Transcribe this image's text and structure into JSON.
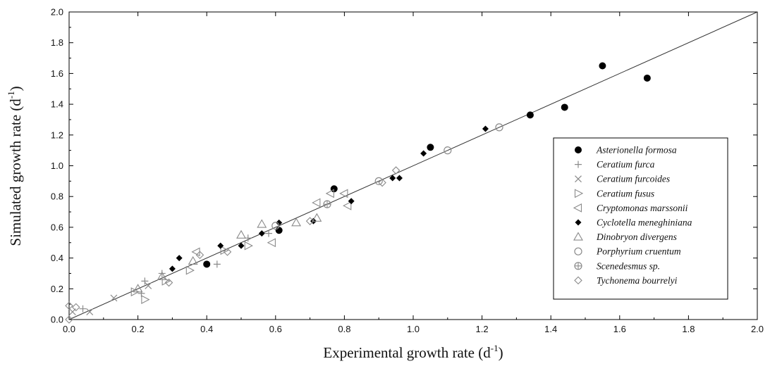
{
  "chart_data": {
    "type": "scatter",
    "xlabel": "Experimental growth rate (d",
    "xlabel_sup": "-1",
    "xlabel_end": ")",
    "ylabel": "Simulated growth rate (d",
    "ylabel_sup": "-1",
    "ylabel_end": ")",
    "xlim": [
      0.0,
      2.0
    ],
    "ylim": [
      0.0,
      2.0
    ],
    "xticks": [
      "0.0",
      "0.2",
      "0.4",
      "0.6",
      "0.8",
      "1.0",
      "1.2",
      "1.4",
      "1.6",
      "1.8",
      "2.0"
    ],
    "yticks": [
      "0.0",
      "0.2",
      "0.4",
      "0.6",
      "0.8",
      "1.0",
      "1.2",
      "1.4",
      "1.6",
      "1.8",
      "2.0"
    ],
    "grid": false,
    "legend_position": "bottom-right",
    "reference_line": {
      "type": "1:1",
      "from": [
        0,
        0
      ],
      "to": [
        2,
        2
      ]
    },
    "series": [
      {
        "name": "Asterionella formosa",
        "marker": "filled-circle",
        "points": [
          [
            0.4,
            0.36
          ],
          [
            0.61,
            0.58
          ],
          [
            0.77,
            0.85
          ],
          [
            1.05,
            1.12
          ],
          [
            1.34,
            1.33
          ],
          [
            1.44,
            1.38
          ],
          [
            1.55,
            1.65
          ],
          [
            1.68,
            1.57
          ]
        ]
      },
      {
        "name": "Ceratium furca",
        "marker": "plus",
        "points": [
          [
            0.04,
            0.07
          ],
          [
            0.21,
            0.17
          ],
          [
            0.22,
            0.25
          ],
          [
            0.27,
            0.3
          ],
          [
            0.43,
            0.36
          ],
          [
            0.52,
            0.53
          ],
          [
            0.58,
            0.56
          ]
        ]
      },
      {
        "name": "Ceratium furcoides",
        "marker": "cross",
        "points": [
          [
            0.01,
            0.05
          ],
          [
            0.06,
            0.05
          ],
          [
            0.13,
            0.14
          ],
          [
            0.23,
            0.22
          ]
        ]
      },
      {
        "name": "Ceratium fusus",
        "marker": "triangle-right",
        "points": [
          [
            0.19,
            0.18
          ],
          [
            0.22,
            0.13
          ],
          [
            0.28,
            0.25
          ],
          [
            0.35,
            0.32
          ],
          [
            0.45,
            0.45
          ],
          [
            0.52,
            0.48
          ]
        ]
      },
      {
        "name": "Cryptomonas marssonii",
        "marker": "triangle-left",
        "points": [
          [
            0.37,
            0.44
          ],
          [
            0.59,
            0.5
          ],
          [
            0.72,
            0.76
          ],
          [
            0.8,
            0.82
          ],
          [
            0.81,
            0.74
          ],
          [
            0.76,
            0.82
          ]
        ]
      },
      {
        "name": "Cyclotella meneghiniana",
        "marker": "filled-diamond",
        "points": [
          [
            0.3,
            0.33
          ],
          [
            0.32,
            0.4
          ],
          [
            0.44,
            0.48
          ],
          [
            0.5,
            0.48
          ],
          [
            0.56,
            0.56
          ],
          [
            0.61,
            0.63
          ],
          [
            0.71,
            0.64
          ],
          [
            0.82,
            0.77
          ],
          [
            0.94,
            0.92
          ],
          [
            0.96,
            0.92
          ],
          [
            1.03,
            1.08
          ],
          [
            1.21,
            1.24
          ]
        ]
      },
      {
        "name": "Dinobryon divergens",
        "marker": "triangle-up",
        "points": [
          [
            0.2,
            0.2
          ],
          [
            0.27,
            0.28
          ],
          [
            0.36,
            0.38
          ],
          [
            0.5,
            0.55
          ],
          [
            0.56,
            0.62
          ],
          [
            0.66,
            0.63
          ],
          [
            0.72,
            0.66
          ]
        ]
      },
      {
        "name": "Porphyrium cruentum",
        "marker": "open-circle",
        "points": [
          [
            0.6,
            0.61
          ],
          [
            0.9,
            0.9
          ],
          [
            1.1,
            1.1
          ],
          [
            1.25,
            1.25
          ]
        ]
      },
      {
        "name": "Scenedesmus sp.",
        "marker": "circle-plus",
        "points": [
          [
            0.75,
            0.75
          ]
        ]
      },
      {
        "name": "Tychonema bourrelyi",
        "marker": "open-diamond",
        "points": [
          [
            0.0,
            0.0
          ],
          [
            0.0,
            0.09
          ],
          [
            0.02,
            0.08
          ],
          [
            0.29,
            0.24
          ],
          [
            0.38,
            0.42
          ],
          [
            0.46,
            0.44
          ],
          [
            0.7,
            0.64
          ],
          [
            0.91,
            0.89
          ],
          [
            0.95,
            0.97
          ]
        ]
      }
    ]
  }
}
